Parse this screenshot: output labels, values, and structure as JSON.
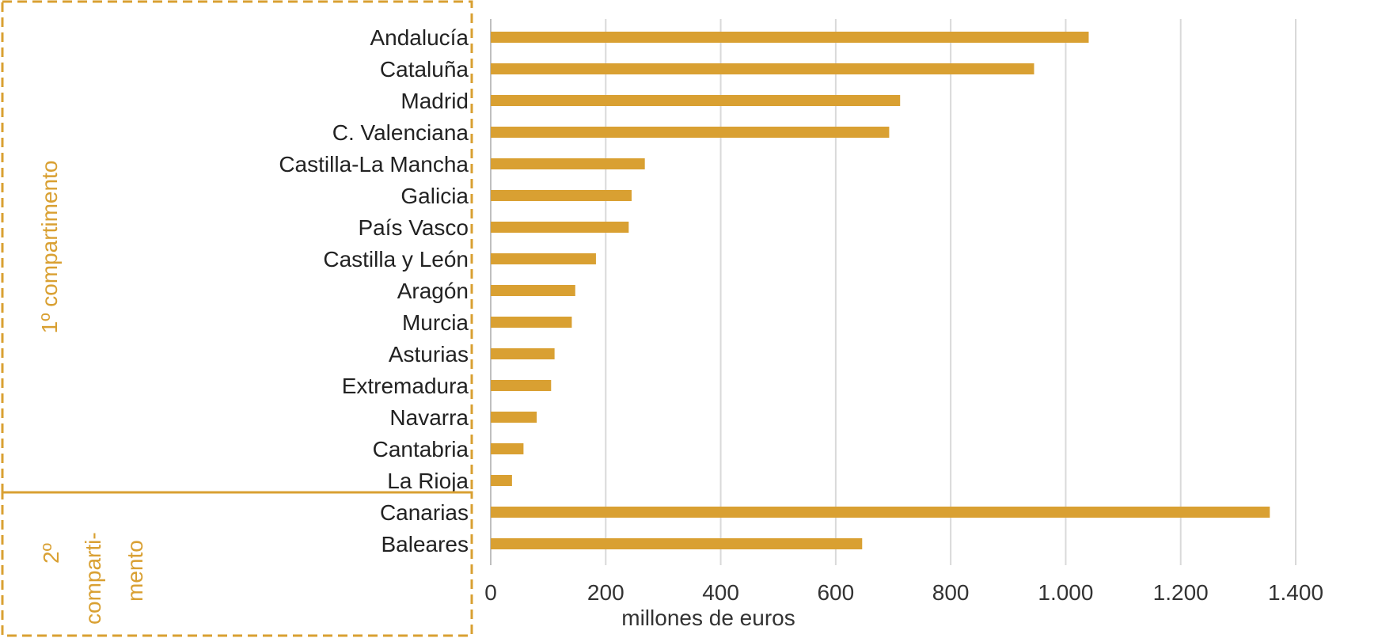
{
  "chart_data": {
    "type": "bar",
    "orientation": "horizontal",
    "categories": [
      "Andalucía",
      "Cataluña",
      "Madrid",
      "C. Valenciana",
      "Castilla-La Mancha",
      "Galicia",
      "País Vasco",
      "Castilla y León",
      "Aragón",
      "Murcia",
      "Asturias",
      "Extremadura",
      "Navarra",
      "Cantabria",
      "La Rioja",
      "Canarias",
      "Baleares"
    ],
    "values": [
      1040,
      945,
      712,
      693,
      268,
      245,
      240,
      183,
      147,
      141,
      111,
      105,
      80,
      57,
      37,
      1355,
      646
    ],
    "xlabel": "millones de euros",
    "xlim": [
      0,
      1400
    ],
    "xticks": [
      0,
      200,
      400,
      600,
      800,
      1000,
      1200,
      1400
    ],
    "xtick_labels": [
      "0",
      "200",
      "400",
      "600",
      "800",
      "1.000",
      "1.200",
      "1.400"
    ],
    "grid": "vertical",
    "legend": "none",
    "groups": [
      {
        "label": "1º compartimento",
        "categories_count": 15
      },
      {
        "label_lines": [
          "2º",
          "comparti-",
          "mento"
        ],
        "categories_count": 2
      }
    ],
    "colors": {
      "bar": "#d9a032",
      "grid": "#d9d9d9",
      "group_border": "#d9a032"
    }
  }
}
